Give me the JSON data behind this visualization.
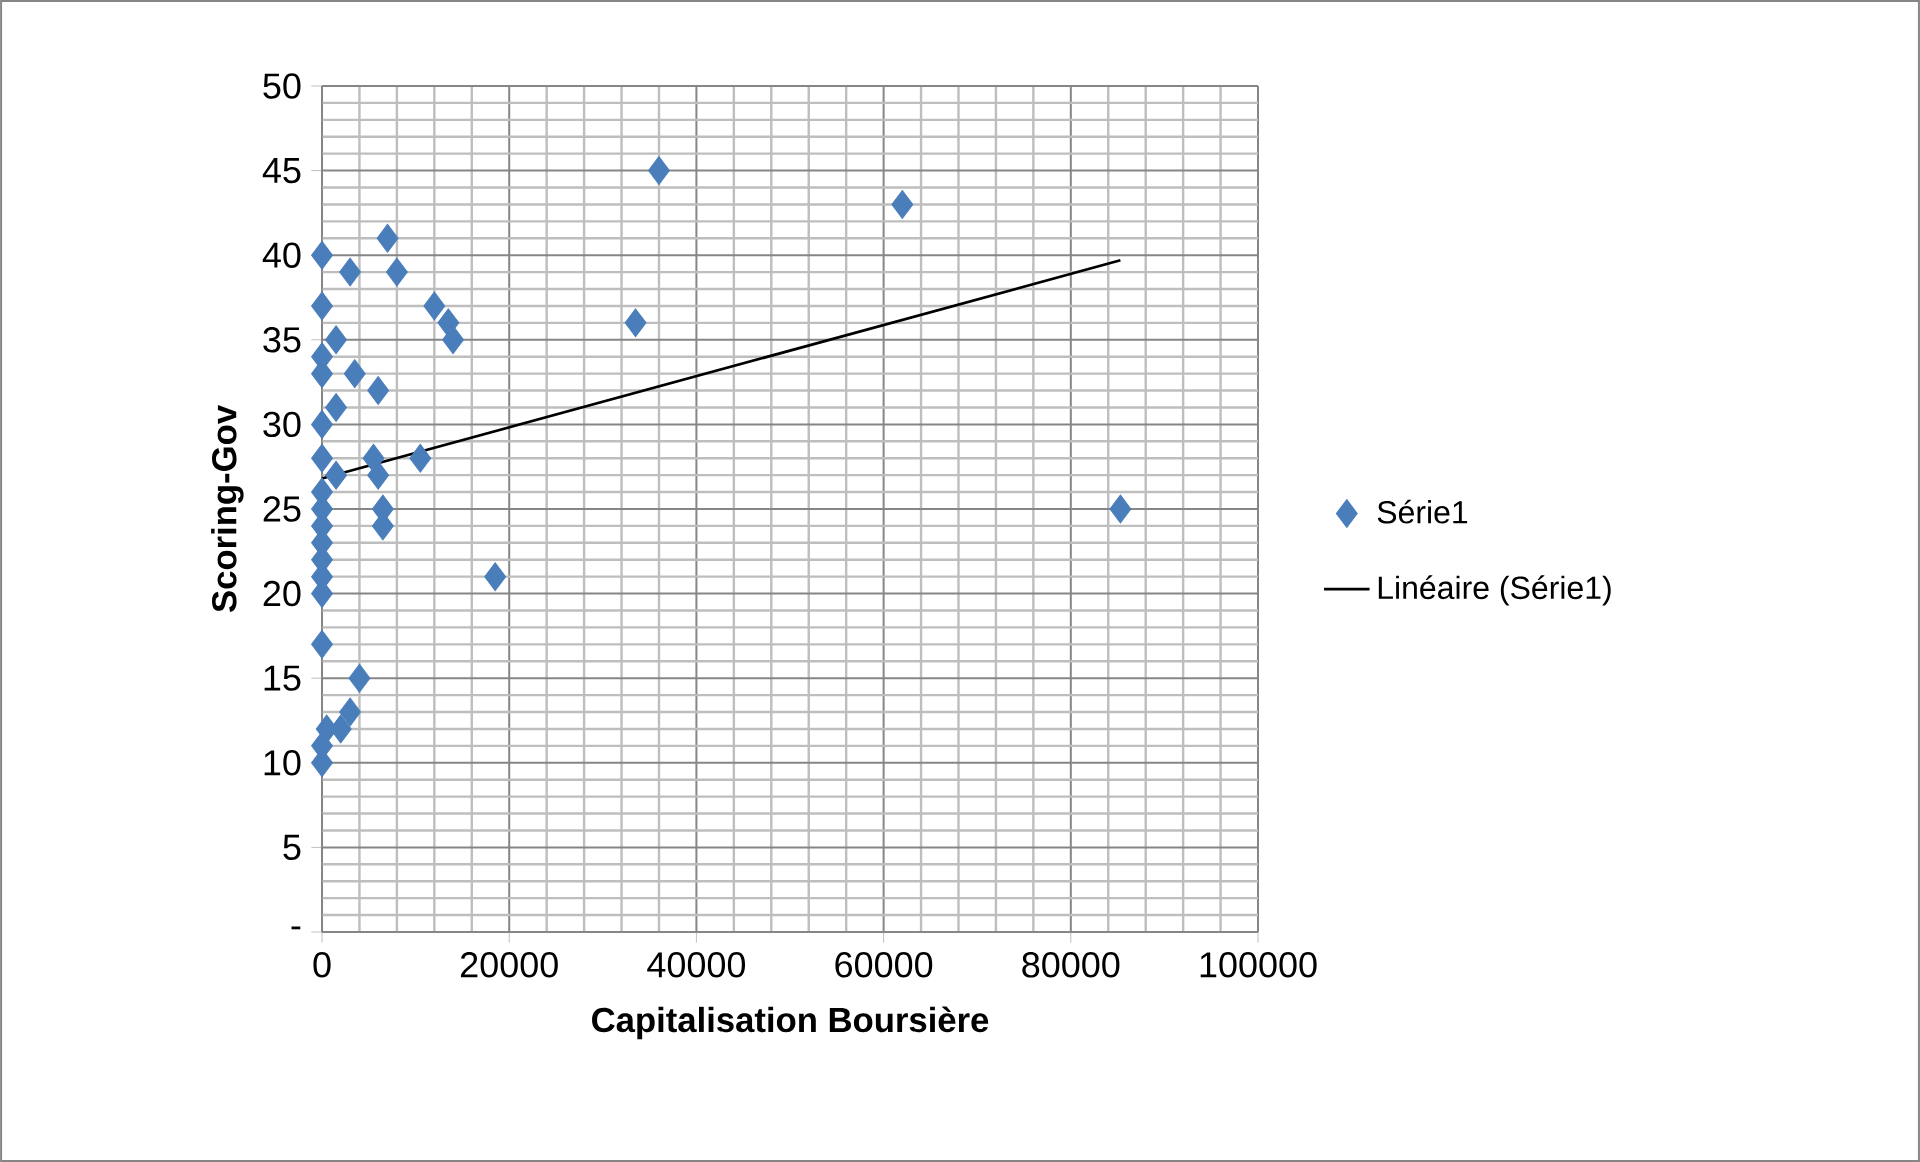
{
  "chart_data": {
    "type": "scatter",
    "xlabel": "Capitalisation Boursière",
    "ylabel": "Scoring-Gov",
    "xlim": [
      0,
      100000
    ],
    "ylim": [
      0,
      50
    ],
    "xticks": [
      0,
      20000,
      40000,
      60000,
      80000,
      100000
    ],
    "yticks": [
      {
        "value": 0,
        "label": "-"
      },
      5,
      10,
      15,
      20,
      25,
      30,
      35,
      40,
      45,
      50
    ],
    "grid": true,
    "legend": "right",
    "series": [
      {
        "name": "Série1",
        "color": "#4a7ebb",
        "marker": "diamond",
        "x": [
          36000,
          0,
          7000,
          3000,
          8000,
          0,
          12000,
          13500,
          14000,
          33500,
          1500,
          0,
          0,
          3500,
          6000,
          1500,
          0,
          0,
          5500,
          10500,
          6000,
          1500,
          0,
          0,
          6500,
          6500,
          0,
          0,
          0,
          0,
          0,
          18500,
          0,
          4000,
          3000,
          500,
          2000,
          0,
          0,
          62000,
          85300
        ],
        "values": [
          45,
          40,
          41,
          39,
          39,
          37,
          37,
          36,
          35,
          36,
          35,
          34,
          33,
          33,
          32,
          31,
          30,
          28,
          28,
          28,
          27,
          27,
          26,
          25,
          25,
          24,
          24,
          23,
          22,
          21,
          20,
          21,
          17,
          15,
          13,
          12,
          12,
          11,
          10,
          43,
          25
        ]
      },
      {
        "name": "Linéaire (Série1)",
        "type": "line",
        "color": "#000000",
        "marker": "none",
        "x": [
          0,
          85300
        ],
        "values": [
          26.8,
          39.7
        ]
      }
    ]
  }
}
